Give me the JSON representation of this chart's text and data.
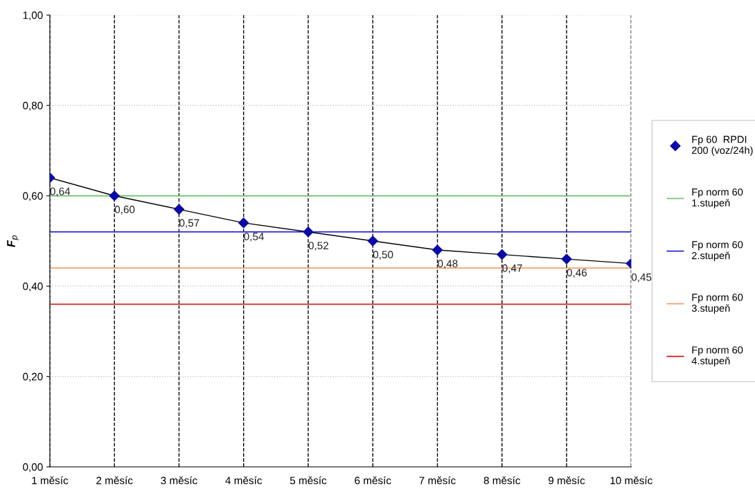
{
  "chart_data": {
    "type": "line",
    "ylabel": "F$_{p}$",
    "categories": [
      "1 měsíc",
      "2 měsíc",
      "3 měsíc",
      "4 měsíc",
      "5 měsíc",
      "6 měsíc",
      "7 měsíc",
      "8 měsíc",
      "9 měsíc",
      "10 měsíc"
    ],
    "series": [
      {
        "name": "Fp 60  RPDI\n200 (voz/24h)",
        "color": "#0a0aa8",
        "marker": "diamond",
        "values": [
          0.64,
          0.6,
          0.57,
          0.54,
          0.52,
          0.5,
          0.48,
          0.47,
          0.46,
          0.45
        ],
        "value_labels": [
          "0,64",
          "0,60",
          "0,57",
          "0,54",
          "0,52",
          "0,50",
          "0,48",
          "0,47",
          "0,46",
          "0,45"
        ]
      },
      {
        "name": "Fp norm 60\n1.stupeň",
        "color": "#7dc67d",
        "marker": "none",
        "values": [
          0.6,
          0.6,
          0.6,
          0.6,
          0.6,
          0.6,
          0.6,
          0.6,
          0.6,
          0.6
        ]
      },
      {
        "name": "Fp norm 60\n2.stupeň",
        "color": "#2a2ae0",
        "marker": "none",
        "values": [
          0.52,
          0.52,
          0.52,
          0.52,
          0.52,
          0.52,
          0.52,
          0.52,
          0.52,
          0.52
        ]
      },
      {
        "name": "Fp norm 60\n3.stupeň",
        "color": "#f0a070",
        "marker": "none",
        "values": [
          0.44,
          0.44,
          0.44,
          0.44,
          0.44,
          0.44,
          0.44,
          0.44,
          0.44,
          0.44
        ]
      },
      {
        "name": "Fp norm 60\n4.stupeň",
        "color": "#d42020",
        "marker": "none",
        "values": [
          0.36,
          0.36,
          0.36,
          0.36,
          0.36,
          0.36,
          0.36,
          0.36,
          0.36,
          0.36
        ]
      }
    ],
    "ylim": [
      0,
      1
    ],
    "yticks": [
      {
        "value": 0,
        "label": "0,00"
      },
      {
        "value": 0.2,
        "label": "0,20"
      },
      {
        "value": 0.4,
        "label": "0,40"
      },
      {
        "value": 0.6,
        "label": "0,60"
      },
      {
        "value": 0.8,
        "label": "0,80"
      },
      {
        "value": 1,
        "label": "1,00"
      }
    ],
    "grid": true,
    "legend": "right",
    "line_style": "solid"
  }
}
